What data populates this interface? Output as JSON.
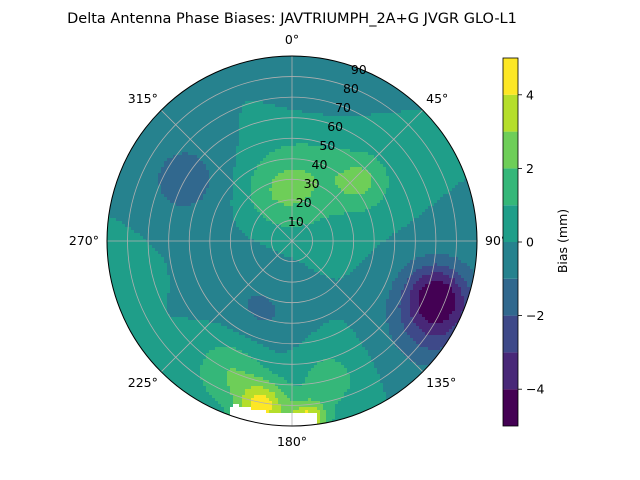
{
  "chart_data": {
    "type": "polar-contour",
    "title": "Delta Antenna Phase Biases: JAVTRIUMPH_2A+G JVGR GLO-L1",
    "theta_ticks": [
      {
        "deg": 0,
        "label": "0°"
      },
      {
        "deg": 45,
        "label": "45°"
      },
      {
        "deg": 90,
        "label": "90°"
      },
      {
        "deg": 135,
        "label": "135°"
      },
      {
        "deg": 180,
        "label": "180°"
      },
      {
        "deg": 225,
        "label": "225°"
      },
      {
        "deg": 270,
        "label": "270°"
      },
      {
        "deg": 315,
        "label": "315°"
      }
    ],
    "radial_ticks": [
      10,
      20,
      30,
      40,
      50,
      60,
      70,
      80,
      90
    ],
    "radial_range": [
      0,
      90
    ],
    "theta_zero": "north",
    "theta_direction": "clockwise",
    "grid": true,
    "colorbar": {
      "label": "Bias (mm)",
      "range": [
        -5,
        5
      ],
      "levels": [
        -5,
        -4,
        -3,
        -2,
        -1,
        0,
        1,
        2,
        3,
        4,
        5
      ],
      "ticks": [
        -4,
        -2,
        0,
        2,
        4
      ],
      "tick_labels": [
        "−4",
        "−2",
        "0",
        "2",
        "4"
      ],
      "colormap": "viridis",
      "colors": [
        "#440154",
        "#482878",
        "#3e4989",
        "#31688e",
        "#26828e",
        "#1f9e89",
        "#35b779",
        "#6ece58",
        "#b5de2b",
        "#fde725"
      ]
    },
    "features": [
      {
        "az": 15,
        "el": 30,
        "value": 1.6,
        "spread": 24
      },
      {
        "az": 50,
        "el": 45,
        "value": 1.9,
        "spread": 14
      },
      {
        "az": 340,
        "el": 25,
        "value": 1.2,
        "spread": 18
      },
      {
        "az": 110,
        "el": 75,
        "value": -3.4,
        "spread": 16
      },
      {
        "az": 120,
        "el": 80,
        "value": -2.5,
        "spread": 22
      },
      {
        "az": 300,
        "el": 60,
        "value": -1.4,
        "spread": 22
      },
      {
        "az": 200,
        "el": 40,
        "value": -1.0,
        "spread": 18
      },
      {
        "az": 190,
        "el": 82,
        "value": 4.2,
        "spread": 12
      },
      {
        "az": 175,
        "el": 88,
        "value": 4.6,
        "spread": 9
      },
      {
        "az": 205,
        "el": 70,
        "value": 2.0,
        "spread": 18
      },
      {
        "az": 165,
        "el": 70,
        "value": 1.5,
        "spread": 16
      },
      {
        "az": 260,
        "el": 88,
        "value": 0.8,
        "spread": 16
      },
      {
        "az": 10,
        "el": 85,
        "value": -0.8,
        "spread": 20
      },
      {
        "az": 235,
        "el": 30,
        "value": -0.5,
        "spread": 22
      }
    ],
    "missing_region": {
      "az_range": [
        172,
        200
      ],
      "el_range": [
        84,
        90
      ]
    }
  }
}
